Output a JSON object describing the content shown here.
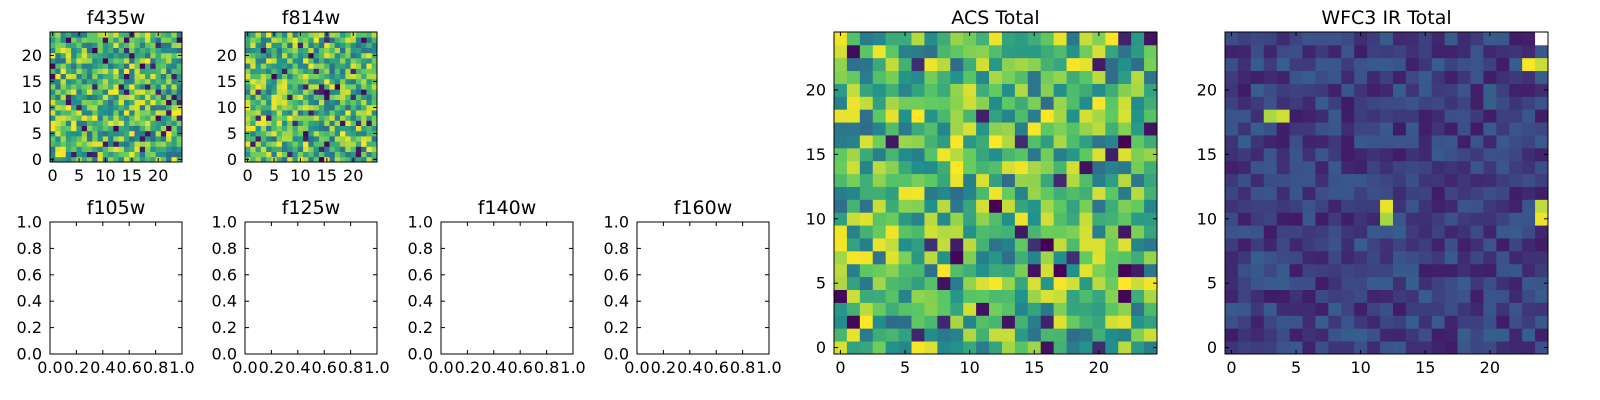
{
  "figure": {
    "panels": [
      "f435w",
      "f814w",
      "f105w",
      "f125w",
      "f140w",
      "f160w",
      "ACS Total",
      "WFC3 IR Total"
    ]
  },
  "chart_data": [
    {
      "type": "heatmap",
      "title": "f435w",
      "grid_size": 25,
      "xlim": [
        -0.5,
        24.5
      ],
      "ylim": [
        -0.5,
        24.5
      ],
      "xticks": [
        0,
        5,
        10,
        15,
        20
      ],
      "yticks": [
        0,
        5,
        10,
        15,
        20
      ],
      "colormap": [
        "#440154",
        "#3b528b",
        "#21918c",
        "#5ec962",
        "#fde725"
      ],
      "values_description": "random noise"
    },
    {
      "type": "heatmap",
      "title": "f814w",
      "grid_size": 25,
      "xlim": [
        -0.5,
        24.5
      ],
      "ylim": [
        -0.5,
        24.5
      ],
      "xticks": [
        0,
        5,
        10,
        15,
        20
      ],
      "yticks": [
        0,
        5,
        10,
        15,
        20
      ],
      "colormap": [
        "#440154",
        "#3b528b",
        "#21918c",
        "#5ec962",
        "#fde725"
      ]
    },
    {
      "type": "empty",
      "title": "f105w",
      "xlim": [
        0,
        1
      ],
      "ylim": [
        0,
        1
      ],
      "xticks": [
        "0.0",
        "0.2",
        "0.4",
        "0.6",
        "0.8",
        "1.0"
      ],
      "yticks": [
        "0.0",
        "0.2",
        "0.4",
        "0.6",
        "0.8",
        "1.0"
      ]
    },
    {
      "type": "empty",
      "title": "f125w",
      "xlim": [
        0,
        1
      ],
      "ylim": [
        0,
        1
      ],
      "xticks": [
        "0.0",
        "0.2",
        "0.4",
        "0.6",
        "0.8",
        "1.0"
      ],
      "yticks": [
        "0.0",
        "0.2",
        "0.4",
        "0.6",
        "0.8",
        "1.0"
      ]
    },
    {
      "type": "empty",
      "title": "f140w",
      "xlim": [
        0,
        1
      ],
      "ylim": [
        0,
        1
      ],
      "xticks": [
        "0.0",
        "0.2",
        "0.4",
        "0.6",
        "0.8",
        "1.0"
      ],
      "yticks": [
        "0.0",
        "0.2",
        "0.4",
        "0.6",
        "0.8",
        "1.0"
      ]
    },
    {
      "type": "empty",
      "title": "f160w",
      "xlim": [
        0,
        1
      ],
      "ylim": [
        0,
        1
      ],
      "xticks": [
        "0.0",
        "0.2",
        "0.4",
        "0.6",
        "0.8",
        "1.0"
      ],
      "yticks": [
        "0.0",
        "0.2",
        "0.4",
        "0.6",
        "0.8",
        "1.0"
      ]
    },
    {
      "type": "heatmap",
      "title": "ACS Total",
      "grid_size": 25,
      "xlim": [
        -0.5,
        24.5
      ],
      "ylim": [
        -0.5,
        24.5
      ],
      "xticks": [
        0,
        5,
        10,
        15,
        20
      ],
      "yticks": [
        0,
        5,
        10,
        15,
        20
      ],
      "colormap": [
        "#440154",
        "#3b528b",
        "#21918c",
        "#5ec962",
        "#fde725"
      ]
    },
    {
      "type": "heatmap",
      "title": "WFC3 IR Total",
      "grid_size": 25,
      "xlim": [
        -0.5,
        24.5
      ],
      "ylim": [
        -0.5,
        24.5
      ],
      "xticks": [
        0,
        5,
        10,
        15,
        20
      ],
      "yticks": [
        0,
        5,
        10,
        15,
        20
      ],
      "colormap": [
        "#440154",
        "#3b528b",
        "#21918c",
        "#5ec962",
        "#fde725"
      ],
      "hot_pixels": [
        [
          3,
          18
        ],
        [
          4,
          18
        ],
        [
          12,
          11
        ],
        [
          12,
          10
        ],
        [
          24,
          22
        ],
        [
          23,
          22
        ],
        [
          24,
          10
        ],
        [
          24,
          11
        ]
      ]
    }
  ]
}
